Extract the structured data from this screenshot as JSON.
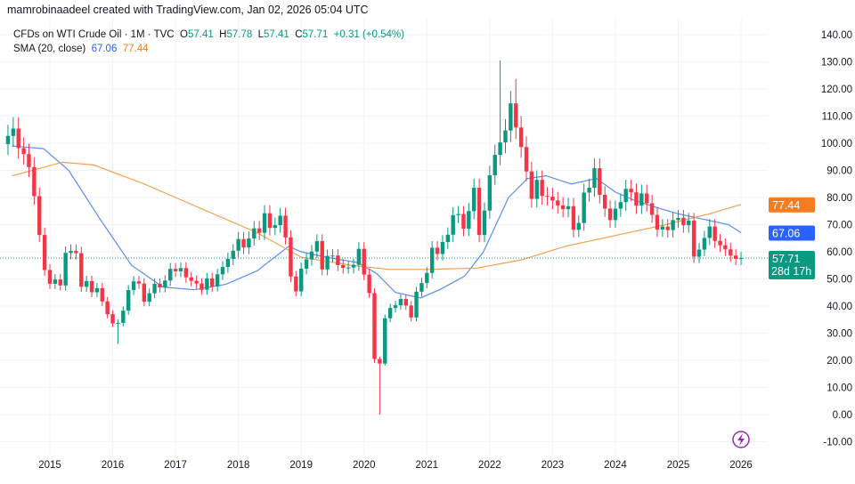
{
  "header": {
    "attribution": "mamrobinaadeel created with TradingView.com, Jan 02, 2026 05:04 UTC"
  },
  "legend": {
    "symbol": "CFDs on WTI Crude Oil · 1M · TVC",
    "o_label": "O",
    "o": "57.41",
    "h_label": "H",
    "h": "57.78",
    "l_label": "L",
    "l": "57.41",
    "c_label": "C",
    "c": "57.71",
    "change": "+0.31 (+0.54%)",
    "sma_label": "SMA (20, close)",
    "sma1": "67.06",
    "sma2": "77.44"
  },
  "badges": {
    "sma2": "77.44",
    "sma1": "67.06",
    "price": "57.71",
    "countdown": "28d 17h"
  },
  "colors": {
    "up": "#089981",
    "down": "#f23645",
    "sma1": "#5b8def",
    "sma2": "#f0a050",
    "price": "#089981",
    "sma1_badge": "#2962ff",
    "sma2_badge": "#f57c1f",
    "icon": "#9c27b0"
  },
  "icons": {
    "bottom": "lightning-icon"
  },
  "chart_data": {
    "type": "candlestick",
    "interval": "1M",
    "start": "2014-05",
    "ylim": [
      -15,
      145
    ],
    "yticks": [
      "140.00",
      "130.00",
      "120.00",
      "110.00",
      "100.00",
      "90.00",
      "80.00",
      "70.00",
      "60.00",
      "50.00",
      "40.00",
      "30.00",
      "20.00",
      "10.00",
      "0.00",
      "-10.00"
    ],
    "xticks": [
      "2015",
      "2016",
      "2017",
      "2018",
      "2019",
      "2020",
      "2021",
      "2022",
      "2023",
      "2024",
      "2025",
      "2026"
    ],
    "grid": true,
    "close": [
      102.7,
      105.4,
      98.2,
      96.0,
      91.2,
      80.5,
      66.2,
      53.3,
      48.2,
      49.8,
      47.6,
      59.6,
      60.3,
      59.5,
      47.1,
      49.2,
      45.1,
      46.6,
      41.7,
      37.0,
      33.6,
      33.8,
      38.3,
      45.9,
      49.1,
      48.3,
      41.6,
      44.7,
      48.2,
      46.9,
      49.4,
      53.7,
      52.8,
      54.0,
      50.6,
      49.3,
      48.3,
      46.0,
      50.2,
      47.2,
      51.7,
      54.4,
      57.4,
      60.4,
      64.7,
      61.6,
      64.9,
      68.6,
      67.0,
      74.2,
      68.8,
      69.8,
      73.3,
      65.3,
      50.9,
      45.4,
      53.8,
      57.2,
      60.1,
      63.9,
      53.5,
      58.5,
      58.6,
      55.1,
      54.1,
      54.2,
      55.2,
      61.1,
      51.6,
      44.8,
      20.5,
      18.8,
      35.5,
      39.3,
      40.3,
      42.6,
      40.2,
      35.8,
      45.3,
      48.5,
      52.2,
      61.5,
      59.2,
      63.6,
      66.3,
      73.5,
      73.9,
      68.5,
      75.0,
      83.6,
      66.2,
      75.2,
      88.2,
      95.7,
      100.3,
      104.7,
      114.7,
      105.8,
      98.6,
      89.6,
      79.5,
      86.5,
      80.6,
      80.3,
      78.9,
      77.1,
      75.7,
      76.8,
      68.1,
      70.6,
      81.8,
      83.6,
      90.8,
      81.0,
      75.9,
      71.7,
      75.9,
      78.3,
      83.2,
      81.9,
      77.0,
      81.5,
      77.9,
      73.6,
      68.2,
      69.3,
      68.0,
      71.7,
      72.5,
      69.8,
      71.5,
      58.2,
      60.8,
      65.1,
      69.3,
      64.0,
      62.4,
      60.9,
      58.6,
      57.4,
      57.71
    ],
    "open_first": 99.7,
    "extremes": {
      "high_2022_03": 130.5,
      "high_2022_06": 123.7,
      "low_2016_02": 26.0,
      "low_2020_04": 0.0
    },
    "series": [
      {
        "name": "SMA (20, close)",
        "points": [
          [
            2014.4,
            99
          ],
          [
            2014.9,
            98
          ],
          [
            2015.3,
            90
          ],
          [
            2015.8,
            72
          ],
          [
            2016.3,
            55
          ],
          [
            2016.8,
            47
          ],
          [
            2017.3,
            46
          ],
          [
            2017.8,
            48
          ],
          [
            2018.3,
            53
          ],
          [
            2018.8,
            62
          ],
          [
            2019.0,
            60
          ],
          [
            2019.4,
            58
          ],
          [
            2019.9,
            56
          ],
          [
            2020.2,
            52
          ],
          [
            2020.5,
            45
          ],
          [
            2020.9,
            43
          ],
          [
            2021.2,
            46
          ],
          [
            2021.6,
            51
          ],
          [
            2021.9,
            60
          ],
          [
            2022.3,
            80
          ],
          [
            2022.6,
            87
          ],
          [
            2022.9,
            88
          ],
          [
            2023.3,
            85
          ],
          [
            2023.7,
            87
          ],
          [
            2024.0,
            82
          ],
          [
            2024.3,
            79
          ],
          [
            2024.7,
            76
          ],
          [
            2025.0,
            74
          ],
          [
            2025.4,
            72
          ],
          [
            2025.8,
            70
          ],
          [
            2026.0,
            67.06
          ]
        ]
      },
      {
        "points": [
          [
            2014.4,
            88
          ],
          [
            2015.2,
            93
          ],
          [
            2015.7,
            92
          ],
          [
            2016.5,
            85
          ],
          [
            2017.5,
            75
          ],
          [
            2018.3,
            67
          ],
          [
            2019.0,
            58
          ],
          [
            2019.8,
            55
          ],
          [
            2020.4,
            53.5
          ],
          [
            2021.0,
            53.5
          ],
          [
            2021.8,
            54
          ],
          [
            2022.5,
            57
          ],
          [
            2023.2,
            62
          ],
          [
            2024.0,
            66
          ],
          [
            2024.8,
            70
          ],
          [
            2025.5,
            74
          ],
          [
            2026.0,
            77.44
          ]
        ]
      }
    ]
  }
}
